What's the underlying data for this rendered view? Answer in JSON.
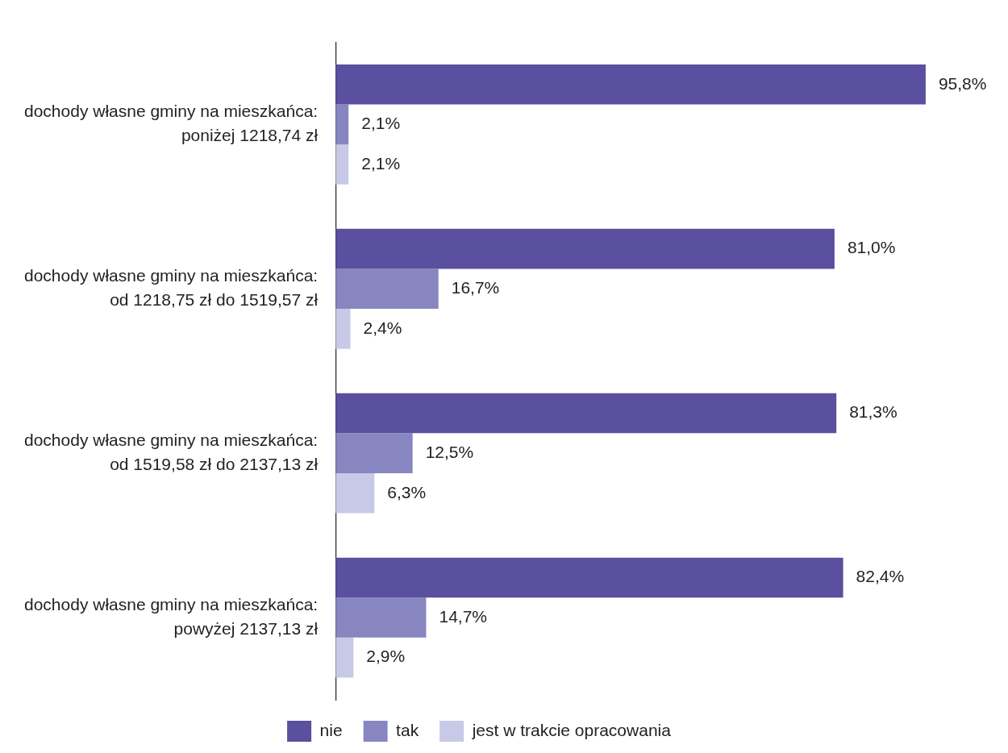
{
  "chart_data": {
    "type": "bar",
    "orientation": "horizontal",
    "categories": [
      "dochody własne gminy na mieszkańca:\nponiżej 1218,74 zł",
      "dochody własne gminy na mieszkańca:\nod 1218,75 zł do 1519,57 zł",
      "dochody własne gminy na mieszkańca:\nod 1519,58 zł do 2137,13 zł",
      "dochody własne gminy na mieszkańca:\npowyżej 2137,13 zł"
    ],
    "series": [
      {
        "name": "nie",
        "color": "#5b4f9f",
        "values": [
          95.8,
          81.0,
          81.3,
          82.4
        ],
        "value_labels": [
          "95,8%",
          "81,0%",
          "81,3%",
          "82,4%"
        ]
      },
      {
        "name": "tak",
        "color": "#8886c0",
        "values": [
          2.1,
          16.7,
          12.5,
          14.7
        ],
        "value_labels": [
          "2,1%",
          "16,7%",
          "12,5%",
          "14,7%"
        ]
      },
      {
        "name": "jest w trakcie opracowania",
        "color": "#c8c9e6",
        "values": [
          2.1,
          2.4,
          6.3,
          2.9
        ],
        "value_labels": [
          "2,1%",
          "2,4%",
          "6,3%",
          "2,9%"
        ]
      }
    ],
    "tick_labels": "y",
    "grid": false,
    "legend": "bottom"
  }
}
